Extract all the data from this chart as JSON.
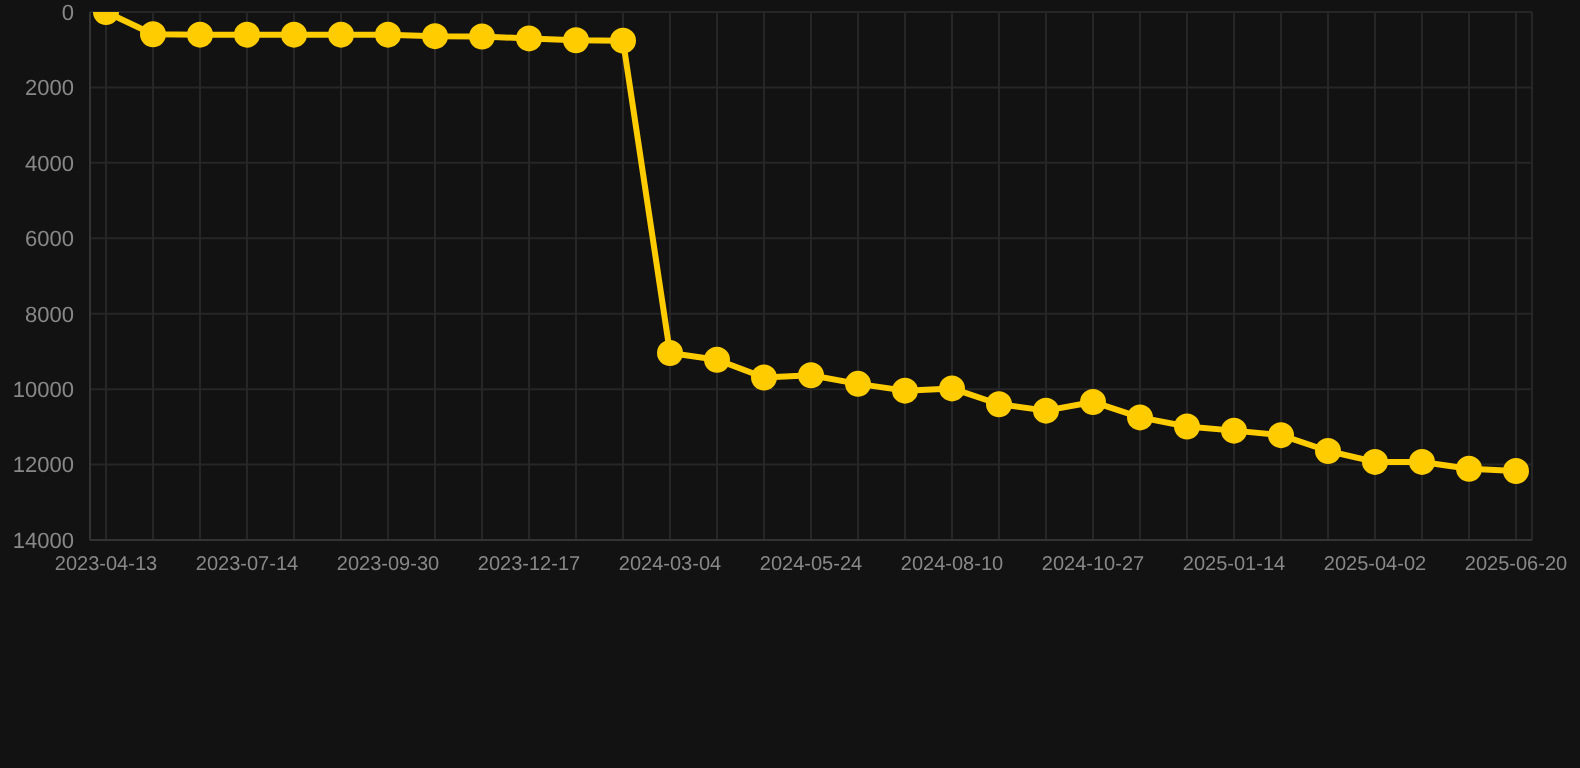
{
  "chart_data": {
    "type": "line",
    "categories": [
      "2023-04-13",
      null,
      null,
      "2023-07-14",
      null,
      null,
      "2023-09-30",
      null,
      null,
      "2023-12-17",
      null,
      null,
      "2024-03-04",
      null,
      null,
      "2024-05-24",
      null,
      null,
      "2024-08-10",
      null,
      null,
      "2024-10-27",
      null,
      null,
      "2025-01-14",
      null,
      null,
      "2025-04-02",
      null,
      null,
      "2025-06-20"
    ],
    "series": [
      {
        "color": "#ffcc00",
        "values": [
          0,
          590,
          600,
          600,
          600,
          600,
          600,
          640,
          650,
          700,
          750,
          760,
          9040,
          9220,
          9690,
          9630,
          9860,
          10040,
          9980,
          10400,
          10570,
          10340,
          10750,
          10990,
          11100,
          11220,
          11640,
          11930,
          11930,
          12110,
          12170
        ]
      }
    ],
    "ylim": [
      14000,
      0
    ],
    "yticks": [
      0,
      2000,
      4000,
      6000,
      8000,
      10000,
      12000,
      14000
    ],
    "grid": true,
    "marker": "circle",
    "line_style": "solid"
  }
}
